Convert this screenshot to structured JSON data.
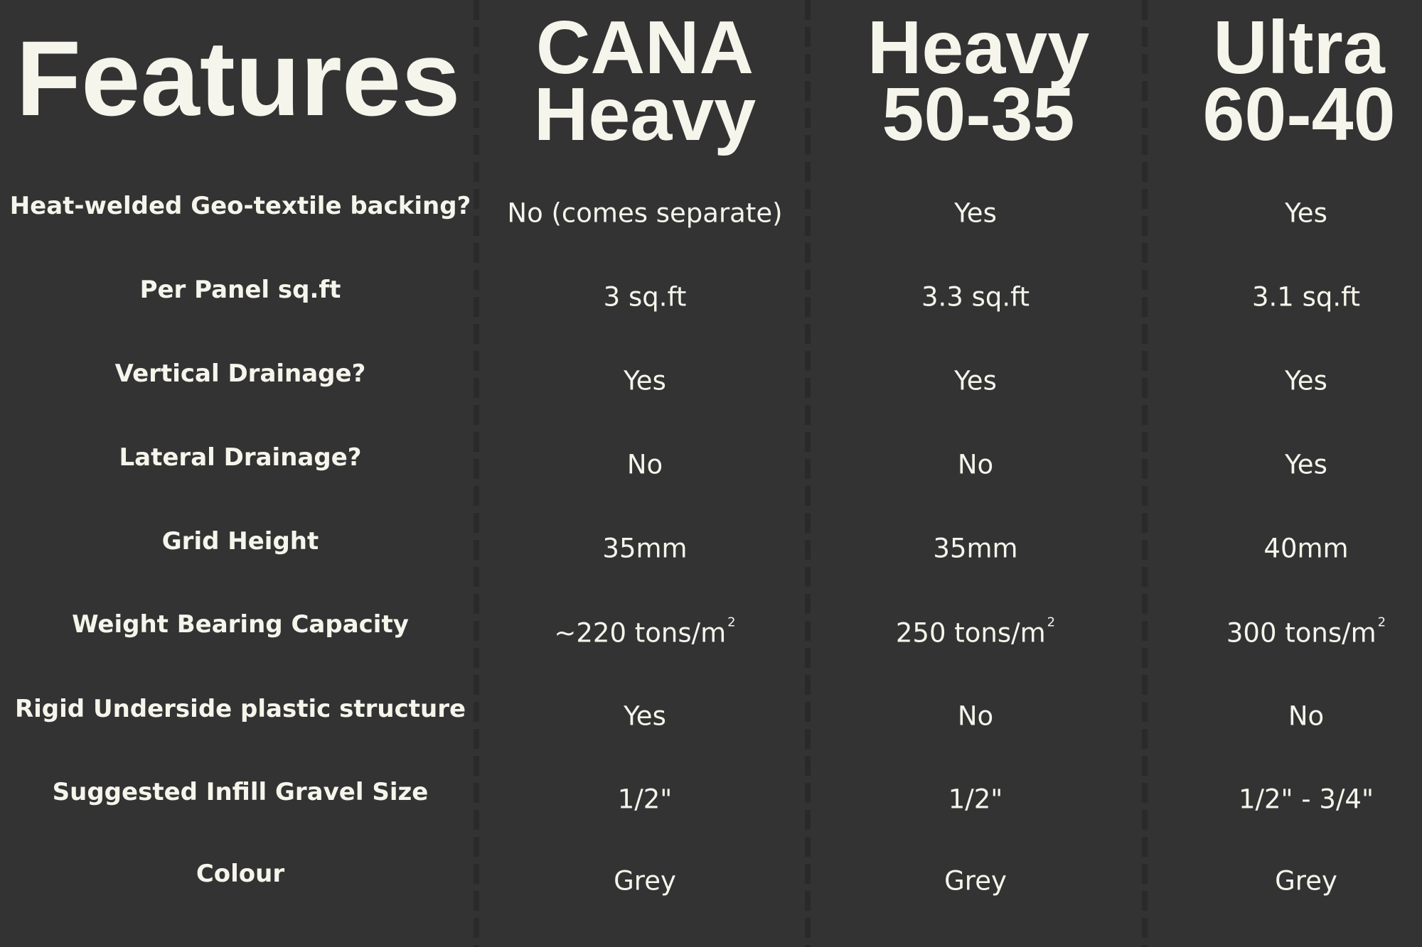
{
  "header": {
    "features_title": "Features"
  },
  "columns": [
    {
      "line1": "CANA",
      "line2": "Heavy"
    },
    {
      "line1": "Heavy",
      "line2": "50-35"
    },
    {
      "line1": "Ultra",
      "line2": "60-40"
    }
  ],
  "rows": [
    {
      "label": "Heat-welded Geo-textile backing?",
      "values": [
        "No (comes separate)",
        "Yes",
        "Yes"
      ]
    },
    {
      "label": "Per Panel sq.ft",
      "values": [
        "3 sq.ft",
        "3.3 sq.ft",
        "3.1 sq.ft"
      ]
    },
    {
      "label": "Vertical Drainage?",
      "values": [
        "Yes",
        "Yes",
        "Yes"
      ]
    },
    {
      "label": "Lateral Drainage?",
      "values": [
        "No",
        "No",
        "Yes"
      ]
    },
    {
      "label": "Grid Height",
      "values": [
        "35mm",
        "35mm",
        "40mm"
      ]
    },
    {
      "label": "Weight Bearing Capacity",
      "values": [
        "~220 tons/m",
        "250 tons/m",
        "300 tons/m"
      ],
      "superscript": "2"
    },
    {
      "label": "Rigid Underside plastic structure",
      "values": [
        "Yes",
        "No",
        "No"
      ]
    },
    {
      "label": "Suggested Infill Gravel Size",
      "values": [
        "1/2\"",
        "1/2\"",
        "1/2\" - 3/4\""
      ]
    },
    {
      "label": "Colour",
      "values": [
        "Grey",
        "Grey",
        "Grey"
      ]
    }
  ],
  "colors": {
    "background": "#333333",
    "text": "#f5f5ec",
    "divider": "#2a2a2a"
  }
}
